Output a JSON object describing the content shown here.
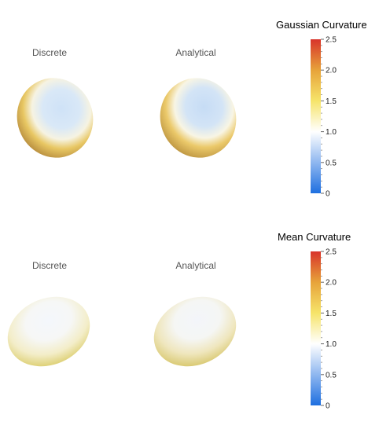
{
  "gaussian": {
    "title": "Gaussian Curvature",
    "left_label": "Discrete",
    "right_label": "Analytical",
    "legend": {
      "min": 0,
      "max": 2.5,
      "ticks": [
        "0",
        "0.5",
        "1.0",
        "1.5",
        "2.0",
        "2.5"
      ]
    }
  },
  "mean": {
    "title": "Mean Curvature",
    "left_label": "Discrete",
    "right_label": "Analytical",
    "legend": {
      "min": 0,
      "max": 2.5,
      "ticks": [
        "0",
        "0.5",
        "1.0",
        "1.5",
        "2.0",
        "2.5"
      ]
    }
  },
  "colors": {
    "scale_low": "#1e6fe0",
    "scale_mid": "#ffffff",
    "scale_high_1": "#f6e46a",
    "scale_high_2": "#e7a33a",
    "scale_top": "#d8342b",
    "gaussian_center": "#c9def5",
    "gaussian_rim": "#b58a3a",
    "mean_center": "#f7f8fb",
    "mean_rim": "#e2d46a"
  }
}
